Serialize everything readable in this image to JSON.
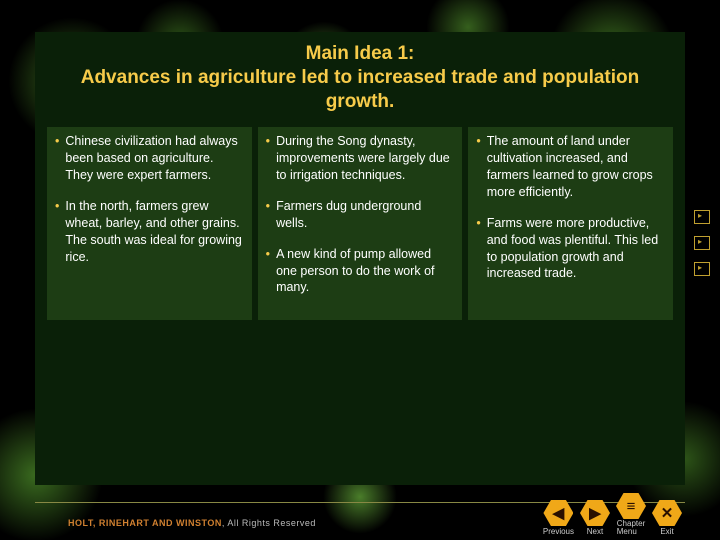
{
  "title": "Main Idea 1:\nAdvances in agriculture led to increased trade and population growth.",
  "columns": [
    {
      "bullets": [
        "Chinese civilization had always been based on agriculture. They were expert farmers.",
        "In the north, farmers grew wheat, barley, and other grains. The south was ideal for growing rice."
      ]
    },
    {
      "bullets": [
        "During the Song dynasty, improvements were largely due to irrigation techniques.",
        "Farmers dug underground wells.",
        "A new kind of pump allowed one person to do the work of many."
      ]
    },
    {
      "bullets": [
        "The amount of land under cultivation increased, and farmers learned to grow crops more efficiently.",
        "Farms were more productive, and food was plentiful. This led to population growth and increased trade."
      ]
    }
  ],
  "footer": {
    "brand": "HOLT, RINEHART AND WINSTON",
    "rights": ", All Rights Reserved"
  },
  "nav": {
    "previous": {
      "glyph": "◀",
      "label": "Previous"
    },
    "next": {
      "glyph": "▶",
      "label": "Next"
    },
    "chapter": {
      "glyph": "≡",
      "label": "Chapter\nMenu"
    },
    "exit": {
      "glyph": "✕",
      "label": "Exit"
    }
  },
  "colors": {
    "title": "#f7cb4a",
    "bullet_dot": "#f7cb4a",
    "text": "#ffffff",
    "panel_bg": "#1d3d14",
    "content_bg": "#0a2008",
    "nav_hex": "#f0a818"
  }
}
